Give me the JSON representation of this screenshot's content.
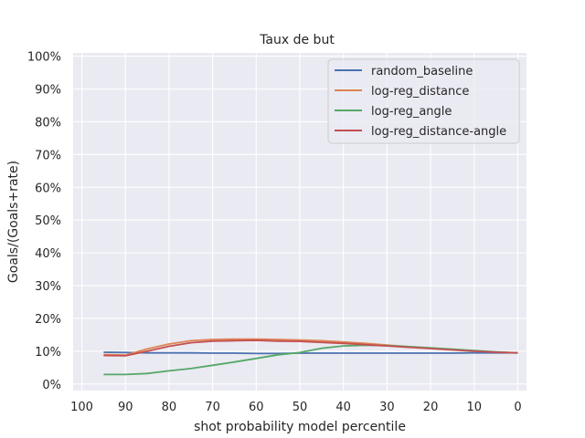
{
  "chart_data": {
    "type": "line",
    "title": "Taux de but",
    "xlabel": "shot probability model percentile",
    "ylabel": "Goals/(Goals+rate)",
    "xlim": [
      102,
      -2
    ],
    "ylim": [
      -2,
      101
    ],
    "x_inverted": true,
    "xticks": [
      100,
      90,
      80,
      70,
      60,
      50,
      40,
      30,
      20,
      10,
      0
    ],
    "xtick_labels": [
      "100",
      "90",
      "80",
      "70",
      "60",
      "50",
      "40",
      "30",
      "20",
      "10",
      "0"
    ],
    "yticks": [
      0,
      10,
      20,
      30,
      40,
      50,
      60,
      70,
      80,
      90,
      100
    ],
    "ytick_labels": [
      "0%",
      "10%",
      "20%",
      "30%",
      "40%",
      "50%",
      "60%",
      "70%",
      "80%",
      "90%",
      "100%"
    ],
    "grid": true,
    "legend_position": "top-right",
    "x": [
      95,
      90,
      85,
      80,
      75,
      70,
      65,
      60,
      55,
      50,
      45,
      40,
      35,
      30,
      25,
      20,
      15,
      10,
      5,
      0
    ],
    "series": [
      {
        "name": "random_baseline",
        "color": "#4c72b0",
        "values": [
          9.7,
          9.6,
          9.5,
          9.5,
          9.5,
          9.4,
          9.4,
          9.3,
          9.3,
          9.4,
          9.4,
          9.4,
          9.4,
          9.4,
          9.4,
          9.4,
          9.4,
          9.5,
          9.5,
          9.5
        ]
      },
      {
        "name": "log-reg_distance",
        "color": "#dd8452",
        "values": [
          9.0,
          8.8,
          10.7,
          12.2,
          13.2,
          13.6,
          13.7,
          13.7,
          13.6,
          13.4,
          13.2,
          12.8,
          12.4,
          11.9,
          11.4,
          11.0,
          10.5,
          10.1,
          9.7,
          9.5
        ]
      },
      {
        "name": "log-reg_angle",
        "color": "#55a868",
        "values": [
          2.9,
          2.9,
          3.2,
          4.0,
          4.7,
          5.7,
          6.7,
          7.8,
          8.9,
          9.6,
          10.9,
          11.6,
          11.8,
          11.7,
          11.4,
          11.0,
          10.6,
          10.2,
          9.8,
          9.5
        ]
      },
      {
        "name": "log-reg_distance-angle",
        "color": "#c44e52",
        "values": [
          8.7,
          8.6,
          10.0,
          11.5,
          12.6,
          13.1,
          13.2,
          13.3,
          13.1,
          13.0,
          12.7,
          12.4,
          12.0,
          11.6,
          11.2,
          10.8,
          10.4,
          10.0,
          9.7,
          9.5
        ]
      }
    ]
  }
}
